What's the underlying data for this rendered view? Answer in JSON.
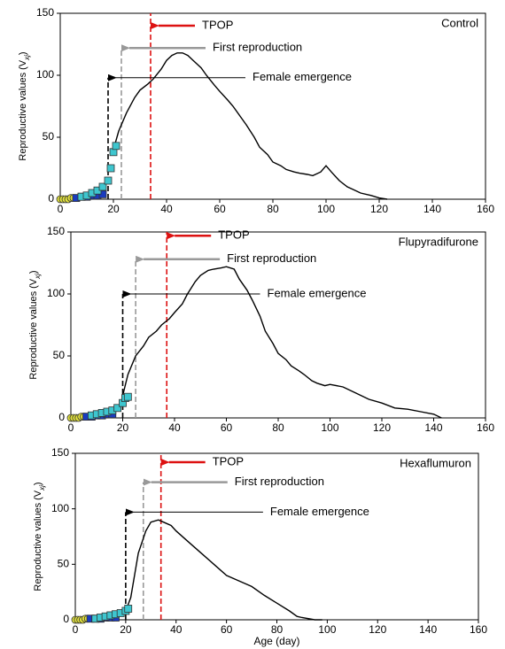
{
  "chart_data": [
    {
      "type": "line",
      "panel_label": "Control",
      "y_label": {
        "text": "Reproductive values (V",
        "subscript": "xj",
        "close": ")"
      },
      "xlim": [
        0,
        160
      ],
      "ylim": [
        0,
        150
      ],
      "xticks": [
        0,
        20,
        40,
        60,
        80,
        100,
        120,
        140,
        160
      ],
      "yticks": [
        0,
        50,
        100,
        150
      ],
      "series": [
        {
          "color": "#000000",
          "x": [
            20,
            22,
            25,
            28,
            30,
            33,
            35,
            38,
            40,
            42,
            44,
            46,
            48,
            50,
            53,
            55,
            58,
            60,
            63,
            65,
            68,
            70,
            73,
            75,
            78,
            80,
            83,
            85,
            88,
            90,
            93,
            95,
            98,
            100,
            102,
            105,
            108,
            110,
            113,
            117,
            120,
            123
          ],
          "values": [
            40,
            55,
            70,
            82,
            88,
            93,
            97,
            105,
            112,
            116,
            118,
            118,
            116,
            112,
            106,
            100,
            92,
            87,
            80,
            75,
            66,
            60,
            50,
            42,
            36,
            30,
            27,
            24,
            22,
            21,
            20,
            19,
            22,
            27,
            22,
            15,
            10,
            8,
            5,
            3,
            1,
            0
          ]
        },
        {
          "color": "#e3e33c",
          "x": [
            0,
            1,
            2,
            3,
            4,
            5
          ],
          "values": [
            0,
            0,
            0,
            0,
            1,
            1
          ]
        },
        {
          "color": "#1a3bbf",
          "x": [
            6,
            8,
            10,
            12,
            14,
            16
          ],
          "values": [
            1,
            2,
            2,
            3,
            3,
            4
          ]
        },
        {
          "color": "#3ec6cf",
          "x": [
            8,
            10,
            12,
            14,
            16,
            18,
            19,
            20,
            21
          ],
          "values": [
            2,
            3,
            5,
            7,
            10,
            15,
            25,
            38,
            43
          ]
        }
      ],
      "annotations": [
        {
          "label": "TPOP",
          "x": 34,
          "y": 140,
          "color": "#dd1111"
        },
        {
          "label": "First reproduction",
          "x": 23,
          "y": 122,
          "color": "#999999"
        },
        {
          "label": "Female emergence",
          "x": 18,
          "y": 98,
          "color": "#000000"
        }
      ]
    },
    {
      "type": "line",
      "panel_label": "Flupyradifurone",
      "y_label": {
        "text": "Reproductive values (V",
        "subscript": "xj",
        "close": ")"
      },
      "xlim": [
        0,
        160
      ],
      "ylim": [
        0,
        150
      ],
      "xticks": [
        0,
        20,
        40,
        60,
        80,
        100,
        120,
        140,
        160
      ],
      "yticks": [
        0,
        50,
        100,
        150
      ],
      "series": [
        {
          "color": "#000000",
          "x": [
            20,
            22,
            25,
            28,
            30,
            33,
            35,
            38,
            40,
            43,
            45,
            48,
            50,
            53,
            55,
            58,
            60,
            63,
            65,
            68,
            70,
            73,
            75,
            78,
            80,
            83,
            85,
            88,
            90,
            93,
            95,
            98,
            100,
            105,
            110,
            115,
            120,
            125,
            130,
            135,
            140,
            143
          ],
          "values": [
            18,
            35,
            50,
            58,
            65,
            70,
            75,
            80,
            85,
            92,
            100,
            110,
            115,
            119,
            120,
            121,
            122,
            120,
            112,
            103,
            95,
            82,
            70,
            60,
            52,
            47,
            42,
            38,
            35,
            30,
            28,
            26,
            27,
            25,
            20,
            15,
            12,
            8,
            7,
            5,
            3,
            0
          ]
        },
        {
          "color": "#e3e33c",
          "x": [
            0,
            1,
            2,
            3,
            4,
            5
          ],
          "values": [
            0,
            0,
            0,
            0,
            1,
            1
          ]
        },
        {
          "color": "#1a3bbf",
          "x": [
            6,
            8,
            10,
            12,
            14,
            16
          ],
          "values": [
            1,
            1,
            2,
            2,
            3,
            3
          ]
        },
        {
          "color": "#3ec6cf",
          "x": [
            8,
            10,
            12,
            14,
            16,
            18,
            20,
            21,
            22
          ],
          "values": [
            2,
            3,
            4,
            5,
            6,
            8,
            12,
            16,
            17
          ]
        }
      ],
      "annotations": [
        {
          "label": "TPOP",
          "x": 37,
          "y": 147,
          "color": "#dd1111"
        },
        {
          "label": "First reproduction",
          "x": 25,
          "y": 128,
          "color": "#999999"
        },
        {
          "label": "Female emergence",
          "x": 20,
          "y": 100,
          "color": "#000000"
        }
      ]
    },
    {
      "type": "line",
      "panel_label": "Hexaflumuron",
      "y_label": {
        "text": "Reproductive values (V",
        "subscript": "xj",
        "close": ")"
      },
      "x_label": "Age (day)",
      "xlim": [
        0,
        160
      ],
      "ylim": [
        0,
        150
      ],
      "xticks": [
        0,
        20,
        40,
        60,
        80,
        100,
        120,
        140,
        160
      ],
      "yticks": [
        0,
        50,
        100,
        150
      ],
      "series": [
        {
          "color": "#000000",
          "x": [
            20,
            22,
            25,
            28,
            30,
            33,
            35,
            38,
            40,
            45,
            50,
            55,
            60,
            65,
            70,
            75,
            80,
            85,
            88,
            90,
            95,
            98
          ],
          "values": [
            8,
            20,
            60,
            80,
            88,
            90,
            88,
            85,
            80,
            70,
            60,
            50,
            40,
            35,
            30,
            22,
            15,
            8,
            3,
            2,
            0,
            0
          ]
        },
        {
          "color": "#e3e33c",
          "x": [
            0,
            1,
            2,
            3,
            4,
            5
          ],
          "values": [
            0,
            0,
            0,
            0,
            1,
            1
          ]
        },
        {
          "color": "#1a3bbf",
          "x": [
            6,
            8,
            10,
            12,
            14,
            16
          ],
          "values": [
            1,
            1,
            1,
            2,
            2,
            2
          ]
        },
        {
          "color": "#3ec6cf",
          "x": [
            8,
            10,
            12,
            14,
            16,
            18,
            20,
            21
          ],
          "values": [
            1,
            2,
            3,
            4,
            5,
            6,
            8,
            10
          ]
        }
      ],
      "annotations": [
        {
          "label": "TPOP",
          "x": 34,
          "y": 142,
          "color": "#dd1111"
        },
        {
          "label": "First reproduction",
          "x": 27,
          "y": 124,
          "color": "#999999"
        },
        {
          "label": "Female emergence",
          "x": 20,
          "y": 97,
          "color": "#000000"
        }
      ]
    }
  ]
}
